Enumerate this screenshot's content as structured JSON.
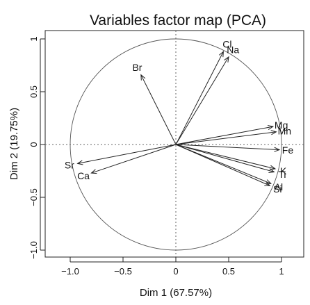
{
  "chart_data": {
    "type": "scatter",
    "title": "Variables factor map (PCA)",
    "xlabel": "Dim 1 (67.57%)",
    "ylabel": "Dim 2 (19.75%)",
    "xlim": [
      -1.1,
      1.1
    ],
    "ylim": [
      -1.1,
      1.1
    ],
    "x_ticks": [
      -1.0,
      -0.5,
      0,
      0.5,
      1
    ],
    "x_tick_labels": [
      "−1.0",
      "−0.5",
      "0",
      "0.5",
      "1"
    ],
    "y_ticks": [
      -1.0,
      -0.5,
      0,
      0.5,
      1
    ],
    "y_tick_labels": [
      "−1.0",
      "−0.5",
      "0",
      "0.5",
      "1"
    ],
    "circle_radius": 1,
    "grid": false,
    "reference_lines": [
      0
    ],
    "variables": [
      {
        "name": "Cl",
        "x": 0.45,
        "y": 0.88
      },
      {
        "name": "Na",
        "x": 0.5,
        "y": 0.83
      },
      {
        "name": "Br",
        "x": -0.33,
        "y": 0.66
      },
      {
        "name": "Mg",
        "x": 0.92,
        "y": 0.17
      },
      {
        "name": "Mn",
        "x": 0.95,
        "y": 0.12
      },
      {
        "name": "Fe",
        "x": 0.98,
        "y": -0.05
      },
      {
        "name": "K",
        "x": 0.94,
        "y": -0.23
      },
      {
        "name": "Ti",
        "x": 0.93,
        "y": -0.26
      },
      {
        "name": "Al",
        "x": 0.9,
        "y": -0.37
      },
      {
        "name": "Si",
        "x": 0.89,
        "y": -0.39
      },
      {
        "name": "Sr",
        "x": -0.93,
        "y": -0.18
      },
      {
        "name": "Ca",
        "x": -0.8,
        "y": -0.27
      }
    ]
  }
}
